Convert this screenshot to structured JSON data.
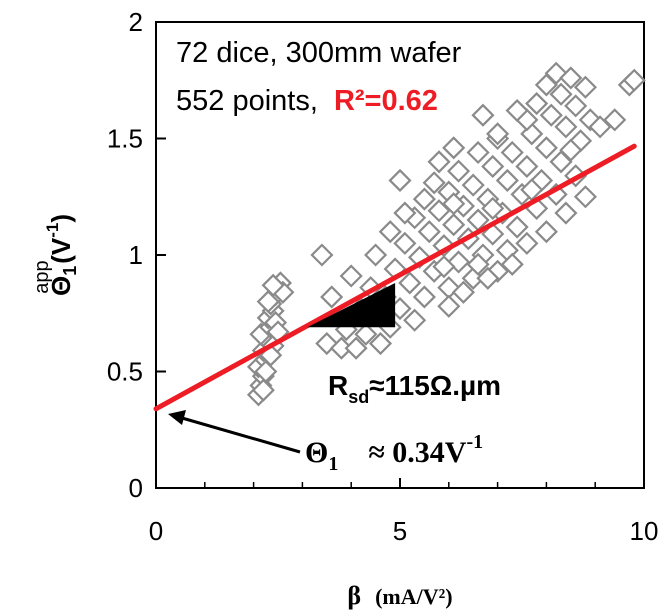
{
  "chart_data": {
    "type": "scatter",
    "title": "",
    "xlabel": {
      "symbol": "β",
      "unit": "(mA/V²)"
    },
    "ylabel": {
      "symbol": "Θ",
      "sub": "1",
      "sup": "app",
      "unit_prefix": "(V",
      "unit_exp": "-1",
      "unit_suffix": ")"
    },
    "xlim": [
      0,
      10
    ],
    "ylim": [
      0,
      2
    ],
    "x_ticks": [
      0,
      5,
      10
    ],
    "x_tick_labels": [
      "0",
      "5",
      "10"
    ],
    "y_ticks": [
      0,
      0.5,
      1,
      1.5,
      2
    ],
    "y_tick_labels": [
      "0",
      "0.5",
      "1",
      "1.5",
      "2"
    ],
    "grid": false,
    "legend": "none",
    "annotations": {
      "line1": "72 dice, 300mm wafer",
      "line2": "552 points,",
      "r2": "R²=0.62",
      "rsd_prefix": "R",
      "rsd_sub": "sd",
      "rsd_value": "≈115Ω.µm",
      "theta_symbol": "Θ",
      "theta_sub": "1",
      "theta_value": "≈ 0.34V",
      "theta_exp": "-1"
    },
    "fit_line": {
      "intercept": 0.34,
      "slope": 0.115,
      "x_range": [
        0,
        9.8
      ],
      "color": "#ee1c24"
    },
    "slope_triangle": {
      "x0": 3.1,
      "x1": 4.9,
      "y0": 0.69,
      "y1": 0.88,
      "color": "#000000"
    },
    "marker": {
      "shape": "diamond",
      "stroke": "#8a8a8a",
      "fill": "#ffffff"
    },
    "series": [
      {
        "points": [
          [
            2.1,
            0.4
          ],
          [
            2.15,
            0.44
          ],
          [
            2.2,
            0.48
          ],
          [
            2.1,
            0.52
          ],
          [
            2.25,
            0.55
          ],
          [
            2.2,
            0.59
          ],
          [
            2.3,
            0.63
          ],
          [
            2.15,
            0.66
          ],
          [
            2.35,
            0.69
          ],
          [
            2.3,
            0.73
          ],
          [
            2.4,
            0.76
          ],
          [
            2.35,
            0.79
          ],
          [
            2.45,
            0.83
          ],
          [
            2.5,
            0.86
          ],
          [
            2.55,
            0.88
          ],
          [
            2.25,
            0.5
          ],
          [
            2.4,
            0.61
          ],
          [
            2.45,
            0.71
          ],
          [
            2.3,
            0.8
          ],
          [
            2.5,
            0.67
          ],
          [
            2.2,
            0.42
          ],
          [
            2.35,
            0.57
          ],
          [
            2.6,
            0.84
          ],
          [
            2.4,
            0.87
          ],
          [
            3.4,
            1.0
          ],
          [
            3.6,
            0.82
          ],
          [
            3.5,
            0.62
          ],
          [
            3.8,
            0.6
          ],
          [
            4.1,
            0.6
          ],
          [
            3.9,
            0.68
          ],
          [
            4.3,
            0.66
          ],
          [
            4.6,
            0.62
          ],
          [
            4.2,
            0.77
          ],
          [
            4.5,
            0.74
          ],
          [
            4.8,
            0.69
          ],
          [
            4.4,
            0.86
          ],
          [
            4.7,
            0.82
          ],
          [
            5.0,
            0.77
          ],
          [
            4.0,
            0.91
          ],
          [
            5.3,
            0.72
          ],
          [
            4.9,
            0.94
          ],
          [
            5.2,
            0.88
          ],
          [
            5.5,
            0.82
          ],
          [
            5.1,
            1.05
          ],
          [
            5.4,
            0.99
          ],
          [
            5.7,
            0.93
          ],
          [
            6.0,
            0.86
          ],
          [
            5.3,
            1.16
          ],
          [
            5.6,
            1.1
          ],
          [
            5.9,
            1.04
          ],
          [
            6.2,
            0.97
          ],
          [
            6.5,
            0.9
          ],
          [
            5.5,
            1.24
          ],
          [
            5.8,
            1.19
          ],
          [
            6.1,
            1.13
          ],
          [
            6.4,
            1.07
          ],
          [
            6.7,
            1.0
          ],
          [
            7.0,
            0.93
          ],
          [
            5.7,
            1.31
          ],
          [
            6.0,
            1.27
          ],
          [
            6.3,
            1.21
          ],
          [
            6.6,
            1.15
          ],
          [
            6.9,
            1.09
          ],
          [
            7.2,
            1.02
          ],
          [
            6.2,
            1.36
          ],
          [
            6.5,
            1.3
          ],
          [
            6.8,
            1.24
          ],
          [
            7.1,
            1.18
          ],
          [
            7.4,
            1.12
          ],
          [
            6.6,
            1.44
          ],
          [
            6.9,
            1.38
          ],
          [
            7.2,
            1.32
          ],
          [
            7.5,
            1.26
          ],
          [
            7.8,
            1.2
          ],
          [
            7.0,
            1.5
          ],
          [
            7.3,
            1.44
          ],
          [
            7.6,
            1.38
          ],
          [
            7.9,
            1.32
          ],
          [
            8.2,
            1.26
          ],
          [
            5.1,
            1.18
          ],
          [
            5.0,
            1.32
          ],
          [
            4.8,
            1.1
          ],
          [
            4.5,
            1.0
          ],
          [
            5.8,
            1.4
          ],
          [
            6.1,
            1.46
          ],
          [
            7.7,
            1.52
          ],
          [
            8.0,
            1.46
          ],
          [
            8.3,
            1.4
          ],
          [
            8.6,
            1.34
          ],
          [
            7.8,
            1.65
          ],
          [
            8.1,
            1.6
          ],
          [
            8.4,
            1.55
          ],
          [
            8.7,
            1.49
          ],
          [
            8.0,
            1.73
          ],
          [
            8.3,
            1.69
          ],
          [
            8.6,
            1.64
          ],
          [
            8.9,
            1.58
          ],
          [
            8.2,
            1.78
          ],
          [
            8.5,
            1.76
          ],
          [
            8.8,
            1.72
          ],
          [
            9.1,
            1.55
          ],
          [
            9.4,
            1.58
          ],
          [
            9.7,
            1.73
          ],
          [
            9.8,
            1.75
          ],
          [
            7.6,
            1.58
          ],
          [
            7.4,
            1.62
          ],
          [
            6.0,
            0.78
          ],
          [
            6.3,
            0.84
          ],
          [
            6.8,
            0.9
          ],
          [
            7.3,
            0.96
          ],
          [
            7.6,
            1.05
          ],
          [
            8.0,
            1.1
          ],
          [
            8.4,
            1.18
          ],
          [
            8.8,
            1.25
          ],
          [
            7.0,
            1.52
          ],
          [
            6.7,
            1.6
          ],
          [
            6.9,
            1.2
          ],
          [
            6.1,
            1.22
          ],
          [
            5.9,
            0.95
          ],
          [
            6.6,
            0.96
          ],
          [
            7.7,
            1.28
          ],
          [
            8.5,
            1.45
          ]
        ]
      }
    ]
  }
}
